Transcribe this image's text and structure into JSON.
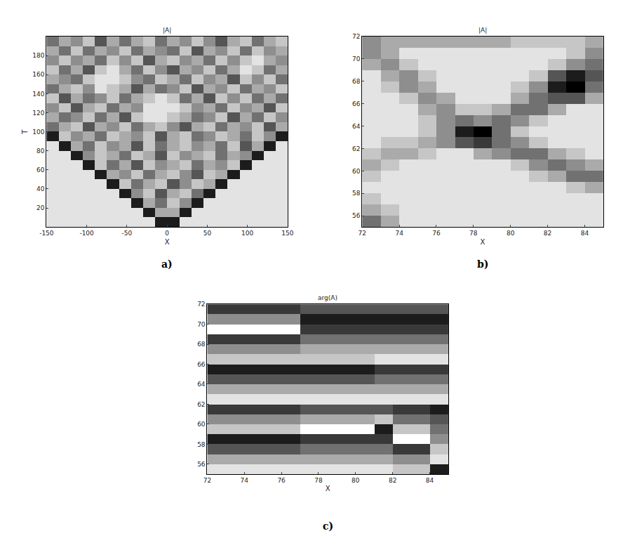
{
  "chart_data": [
    {
      "type": "heatmap",
      "title": "|A|",
      "x_label": "X",
      "y_label": "T",
      "caption": "a)",
      "xlim": [
        -150,
        150
      ],
      "ylim": [
        0,
        200
      ],
      "xticks": [
        -150,
        -100,
        -50,
        0,
        50,
        100,
        150
      ],
      "yticks": [
        20,
        40,
        60,
        80,
        100,
        120,
        140,
        160,
        180
      ],
      "zlim": [
        0,
        9
      ],
      "x": [
        -142.5,
        -127.5,
        -112.5,
        -97.5,
        -82.5,
        -67.5,
        -52.5,
        -37.5,
        -22.5,
        -7.5,
        7.5,
        22.5,
        37.5,
        52.5,
        67.5,
        82.5,
        97.5,
        112.5,
        127.5,
        142.5
      ],
      "y": [
        5,
        15,
        25,
        35,
        45,
        55,
        65,
        75,
        85,
        95,
        105,
        115,
        125,
        135,
        145,
        155,
        165,
        175,
        185,
        195
      ],
      "z": [
        [
          1,
          1,
          1,
          1,
          1,
          1,
          1,
          1,
          1,
          8,
          8,
          1,
          1,
          1,
          1,
          1,
          1,
          1,
          1,
          1
        ],
        [
          1,
          1,
          1,
          1,
          1,
          1,
          1,
          1,
          8,
          3,
          3,
          8,
          1,
          1,
          1,
          1,
          1,
          1,
          1,
          1
        ],
        [
          1,
          1,
          1,
          1,
          1,
          1,
          1,
          8,
          3,
          5,
          2,
          4,
          8,
          1,
          1,
          1,
          1,
          1,
          1,
          1
        ],
        [
          1,
          1,
          1,
          1,
          1,
          1,
          8,
          4,
          2,
          6,
          3,
          2,
          5,
          8,
          1,
          1,
          1,
          1,
          1,
          1
        ],
        [
          1,
          1,
          1,
          1,
          1,
          8,
          2,
          5,
          3,
          2,
          6,
          4,
          2,
          3,
          8,
          1,
          1,
          1,
          1,
          1
        ],
        [
          1,
          1,
          1,
          1,
          8,
          3,
          4,
          2,
          5,
          3,
          2,
          4,
          6,
          2,
          3,
          8,
          1,
          1,
          1,
          1
        ],
        [
          1,
          1,
          1,
          8,
          2,
          5,
          3,
          6,
          2,
          4,
          3,
          2,
          5,
          3,
          4,
          2,
          8,
          1,
          1,
          1
        ],
        [
          1,
          1,
          8,
          4,
          2,
          3,
          5,
          2,
          3,
          6,
          2,
          4,
          3,
          2,
          5,
          3,
          4,
          8,
          1,
          1
        ],
        [
          1,
          8,
          3,
          5,
          2,
          4,
          3,
          6,
          2,
          5,
          3,
          2,
          4,
          3,
          5,
          2,
          6,
          3,
          8,
          1
        ],
        [
          8,
          2,
          4,
          3,
          5,
          2,
          3,
          4,
          2,
          6,
          3,
          2,
          5,
          4,
          2,
          3,
          5,
          2,
          4,
          8
        ],
        [
          5,
          3,
          2,
          6,
          3,
          4,
          2,
          5,
          3,
          2,
          4,
          6,
          3,
          2,
          5,
          3,
          4,
          2,
          6,
          3
        ],
        [
          3,
          5,
          4,
          2,
          5,
          3,
          6,
          2,
          1,
          1,
          2,
          3,
          5,
          4,
          2,
          6,
          3,
          5,
          2,
          4
        ],
        [
          4,
          2,
          6,
          3,
          2,
          5,
          3,
          4,
          1,
          1,
          1,
          2,
          4,
          3,
          5,
          2,
          4,
          3,
          6,
          2
        ],
        [
          2,
          6,
          3,
          5,
          4,
          2,
          5,
          3,
          2,
          1,
          2,
          5,
          3,
          6,
          2,
          4,
          2,
          5,
          3,
          5
        ],
        [
          5,
          3,
          2,
          4,
          1,
          2,
          3,
          6,
          3,
          5,
          4,
          2,
          6,
          3,
          4,
          2,
          5,
          3,
          4,
          2
        ],
        [
          3,
          4,
          5,
          2,
          1,
          1,
          2,
          4,
          5,
          2,
          3,
          5,
          2,
          4,
          3,
          6,
          2,
          4,
          2,
          5
        ],
        [
          2,
          5,
          3,
          6,
          2,
          1,
          3,
          5,
          2,
          4,
          6,
          3,
          4,
          2,
          5,
          3,
          1,
          2,
          5,
          3
        ],
        [
          4,
          2,
          4,
          3,
          5,
          2,
          4,
          2,
          6,
          3,
          2,
          4,
          3,
          5,
          2,
          4,
          2,
          1,
          3,
          4
        ],
        [
          3,
          5,
          2,
          5,
          3,
          4,
          2,
          5,
          3,
          4,
          5,
          2,
          6,
          3,
          4,
          2,
          5,
          2,
          4,
          3
        ],
        [
          5,
          3,
          4,
          2,
          6,
          3,
          5,
          3,
          2,
          5,
          3,
          4,
          2,
          4,
          6,
          3,
          2,
          5,
          3,
          2
        ]
      ]
    },
    {
      "type": "heatmap",
      "title": "|A|",
      "x_label": "X",
      "caption": "b)",
      "xlim": [
        72,
        85
      ],
      "ylim": [
        55,
        72
      ],
      "xticks": [
        72,
        74,
        76,
        78,
        80,
        82,
        84
      ],
      "yticks": [
        56,
        58,
        60,
        62,
        64,
        66,
        68,
        70,
        72
      ],
      "zlim": [
        0,
        9
      ],
      "x": [
        72.5,
        73.5,
        74.5,
        75.5,
        76.5,
        77.5,
        78.5,
        79.5,
        80.5,
        81.5,
        82.5,
        83.5,
        84.5
      ],
      "y": [
        55.5,
        56.5,
        57.5,
        58.5,
        59.5,
        60.5,
        61.5,
        62.5,
        63.5,
        64.5,
        65.5,
        66.5,
        67.5,
        68.5,
        69.5,
        70.5,
        71.5
      ],
      "z": [
        [
          5,
          3,
          1,
          1,
          1,
          1,
          1,
          1,
          1,
          1,
          1,
          1,
          1
        ],
        [
          3,
          2,
          1,
          1,
          1,
          1,
          1,
          1,
          1,
          1,
          1,
          1,
          1
        ],
        [
          2,
          1,
          1,
          1,
          1,
          1,
          1,
          1,
          1,
          1,
          1,
          1,
          1
        ],
        [
          1,
          1,
          1,
          1,
          1,
          1,
          1,
          1,
          1,
          1,
          1,
          2,
          3
        ],
        [
          2,
          1,
          1,
          1,
          1,
          1,
          1,
          1,
          1,
          2,
          3,
          5,
          5
        ],
        [
          3,
          2,
          1,
          1,
          1,
          1,
          1,
          1,
          2,
          4,
          5,
          4,
          3
        ],
        [
          2,
          3,
          3,
          2,
          1,
          1,
          3,
          4,
          5,
          5,
          3,
          2,
          1
        ],
        [
          1,
          2,
          2,
          3,
          4,
          6,
          7,
          5,
          4,
          2,
          1,
          1,
          1
        ],
        [
          1,
          1,
          1,
          2,
          4,
          8,
          9,
          5,
          2,
          1,
          1,
          1,
          1
        ],
        [
          1,
          1,
          1,
          2,
          4,
          5,
          4,
          5,
          4,
          2,
          1,
          1,
          1
        ],
        [
          1,
          1,
          1,
          3,
          4,
          2,
          2,
          3,
          5,
          5,
          3,
          1,
          1
        ],
        [
          1,
          1,
          2,
          4,
          3,
          1,
          1,
          1,
          3,
          5,
          6,
          6,
          3
        ],
        [
          1,
          2,
          4,
          3,
          1,
          1,
          1,
          1,
          2,
          4,
          8,
          9,
          5
        ],
        [
          1,
          3,
          4,
          2,
          1,
          1,
          1,
          1,
          1,
          2,
          6,
          8,
          6
        ],
        [
          3,
          4,
          2,
          1,
          1,
          1,
          1,
          1,
          1,
          1,
          2,
          4,
          5
        ],
        [
          4,
          3,
          1,
          1,
          1,
          1,
          1,
          1,
          1,
          1,
          1,
          2,
          4
        ],
        [
          4,
          3,
          3,
          3,
          3,
          3,
          3,
          3,
          2,
          2,
          2,
          2,
          3
        ]
      ]
    },
    {
      "type": "heatmap",
      "title": "arg(A)",
      "x_label": "X",
      "caption": "c)",
      "xlim": [
        72,
        85
      ],
      "ylim": [
        55,
        72
      ],
      "xticks": [
        72,
        74,
        76,
        78,
        80,
        82,
        84
      ],
      "yticks": [
        56,
        58,
        60,
        62,
        64,
        66,
        68,
        70,
        72
      ],
      "zlim": [
        0,
        9
      ],
      "x": [
        72.5,
        73.5,
        74.5,
        75.5,
        76.5,
        77.5,
        78.5,
        79.5,
        80.5,
        81.5,
        82.5,
        83.5,
        84.5
      ],
      "y": [
        55.5,
        56.5,
        57.5,
        58.5,
        59.5,
        60.5,
        61.5,
        62.5,
        63.5,
        64.5,
        65.5,
        66.5,
        67.5,
        68.5,
        69.5,
        70.5,
        71.5
      ],
      "z": [
        [
          1,
          1,
          1,
          1,
          1,
          1,
          1,
          1,
          1,
          1,
          2,
          2,
          8
        ],
        [
          3,
          3,
          3,
          3,
          3,
          3,
          3,
          3,
          3,
          3,
          4,
          4,
          1
        ],
        [
          6,
          6,
          6,
          6,
          6,
          5,
          5,
          5,
          5,
          5,
          7,
          7,
          2
        ],
        [
          8,
          8,
          8,
          8,
          8,
          7,
          7,
          7,
          7,
          7,
          0,
          0,
          4
        ],
        [
          2,
          2,
          2,
          2,
          2,
          0,
          0,
          0,
          0,
          8,
          2,
          2,
          5
        ],
        [
          4,
          4,
          4,
          4,
          4,
          3,
          3,
          3,
          3,
          2,
          5,
          5,
          6
        ],
        [
          7,
          7,
          7,
          7,
          7,
          6,
          6,
          6,
          6,
          6,
          7,
          7,
          8
        ],
        [
          1,
          1,
          1,
          1,
          1,
          1,
          1,
          1,
          1,
          1,
          1,
          1,
          1
        ],
        [
          3,
          3,
          3,
          3,
          3,
          3,
          3,
          3,
          3,
          3,
          3,
          3,
          3
        ],
        [
          6,
          6,
          6,
          6,
          6,
          6,
          6,
          6,
          6,
          5,
          5,
          5,
          5
        ],
        [
          8,
          8,
          8,
          8,
          8,
          8,
          8,
          8,
          8,
          7,
          7,
          7,
          7
        ],
        [
          2,
          2,
          2,
          2,
          2,
          2,
          2,
          2,
          2,
          1,
          1,
          1,
          1
        ],
        [
          4,
          4,
          4,
          4,
          4,
          3,
          3,
          3,
          3,
          3,
          3,
          3,
          3
        ],
        [
          7,
          7,
          7,
          7,
          7,
          5,
          5,
          5,
          5,
          5,
          5,
          5,
          5
        ],
        [
          0,
          0,
          0,
          0,
          0,
          7,
          7,
          7,
          7,
          7,
          7,
          7,
          7
        ],
        [
          4,
          4,
          4,
          4,
          4,
          8,
          8,
          8,
          8,
          8,
          8,
          8,
          8
        ],
        [
          7,
          7,
          7,
          7,
          7,
          6,
          6,
          6,
          6,
          6,
          6,
          6,
          6
        ]
      ]
    }
  ]
}
